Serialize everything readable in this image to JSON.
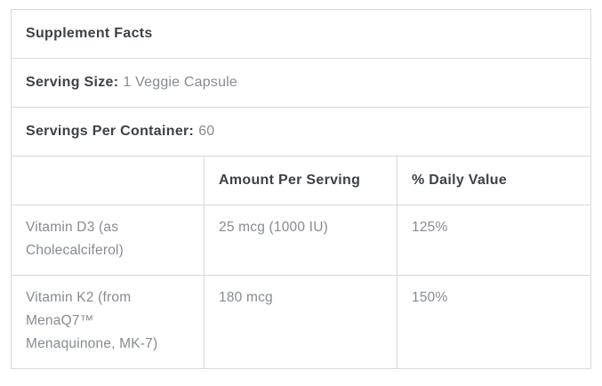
{
  "supplement_facts": {
    "title": "Supplement Facts",
    "serving_size": {
      "label": "Serving Size:",
      "value": "1 Veggie Capsule"
    },
    "servings_per_container": {
      "label": "Servings Per Container:",
      "value": "60"
    },
    "columns": [
      "",
      "Amount Per Serving",
      "% Daily Value"
    ],
    "rows": [
      {
        "ingredient": "Vitamin D3 (as Cholecalciferol)",
        "amount_per_serving": "25 mcg (1000 IU)",
        "percent_daily_value": "125%"
      },
      {
        "ingredient": "Vitamin K2 (from MenaQ7™ Menaquinone, MK-7)",
        "amount_per_serving": "180 mcg",
        "percent_daily_value": "150%"
      }
    ]
  },
  "colors": {
    "background": "#ffffff",
    "border": "#d9d9d9",
    "heading_text": "#3d4249",
    "body_text": "#868b92"
  }
}
